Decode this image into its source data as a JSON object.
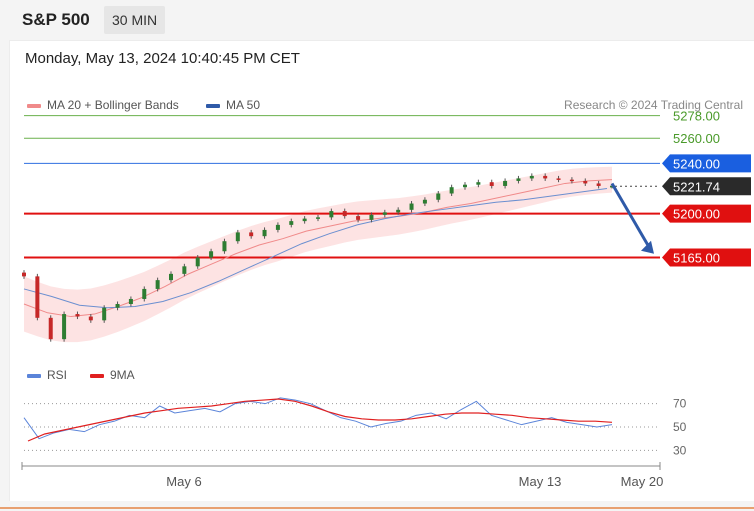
{
  "header": {
    "symbol": "S&P 500",
    "timeframe": "30 MIN"
  },
  "datetime": "Monday, May 13, 2024 10:40:45 PM CET",
  "legend": {
    "ma20_label": "MA 20 + Bollinger Bands",
    "ma50_label": "MA 50",
    "ma20_color": "#f08a8a",
    "ma50_color": "#2f5aa8",
    "credit": "Research © 2024 Trading Central"
  },
  "rsi_legend": {
    "rsi_label": "RSI",
    "ma9_label": "9MA",
    "rsi_color": "#5b84d9",
    "ma9_color": "#e02020"
  },
  "chart_data": [
    {
      "type": "candlestick",
      "ylim": [
        5085,
        5300
      ],
      "series": [
        {
          "name": "Price",
          "values": [
            5150,
            5117,
            5100,
            5120,
            5118,
            5115,
            5125,
            5128,
            5132,
            5140,
            5147,
            5152,
            5158,
            5165,
            5170,
            5178,
            5185,
            5182,
            5187,
            5191,
            5194,
            5196,
            5197,
            5202,
            5198,
            5195,
            5199,
            5201,
            5203,
            5208,
            5211,
            5216,
            5221,
            5223,
            5225,
            5222,
            5226,
            5228,
            5230,
            5228,
            5227,
            5226,
            5224,
            5222,
            5222
          ]
        },
        {
          "name": "MA 20",
          "values": [
            5128,
            5121,
            5118,
            5120,
            5126,
            5133,
            5142,
            5152,
            5160,
            5168,
            5175,
            5180,
            5186,
            5190,
            5194,
            5196,
            5198,
            5201,
            5205,
            5208,
            5212,
            5216,
            5220,
            5224,
            5226,
            5227
          ]
        },
        {
          "name": "MA 50",
          "values": [
            5140,
            5134,
            5127,
            5125,
            5126,
            5130,
            5137,
            5146,
            5156,
            5166,
            5176,
            5184,
            5191,
            5196,
            5200,
            5203,
            5206,
            5209,
            5211,
            5214,
            5217,
            5220
          ]
        }
      ],
      "levels": [
        {
          "value": "5278.00",
          "color": "#6ab04c",
          "style": "thin",
          "label_color": "#4a9a2a"
        },
        {
          "value": "5260.00",
          "color": "#6ab04c",
          "style": "thin",
          "label_color": "#4a9a2a"
        },
        {
          "value": "5240.00",
          "color": "#2f6fe0",
          "style": "thin",
          "label_color": "#1a5fe0"
        },
        {
          "value": "5221.74",
          "color": "#444444",
          "style": "dotted",
          "label_color": "#222222"
        },
        {
          "value": "5200.00",
          "color": "#e01010",
          "style": "thick",
          "label_color": "#e01010"
        },
        {
          "value": "5165.00",
          "color": "#e01010",
          "style": "thick",
          "label_color": "#e01010"
        }
      ],
      "forecast": {
        "direction": "down",
        "target": "5165.00",
        "color": "#2f5aa8"
      }
    },
    {
      "type": "line",
      "ylim": [
        20,
        80
      ],
      "yticks": [
        "70",
        "50",
        "30"
      ],
      "xticks": [
        "May 6",
        "May 13",
        "May 20"
      ],
      "series": [
        {
          "name": "RSI",
          "values": [
            58,
            40,
            45,
            48,
            46,
            52,
            55,
            60,
            58,
            68,
            62,
            64,
            66,
            63,
            70,
            72,
            70,
            75,
            73,
            70,
            64,
            58,
            55,
            50,
            53,
            55,
            60,
            62,
            57,
            65,
            72,
            60,
            56,
            52,
            55,
            58,
            54,
            52,
            50,
            52
          ]
        },
        {
          "name": "9MA",
          "values": [
            38,
            44,
            47,
            50,
            53,
            56,
            59,
            62,
            64,
            66,
            67,
            68,
            70,
            72,
            73,
            74,
            72,
            68,
            63,
            59,
            57,
            56,
            56,
            57,
            59,
            61,
            62,
            62,
            61,
            60,
            58,
            57,
            56,
            55,
            55,
            54
          ]
        }
      ]
    }
  ]
}
